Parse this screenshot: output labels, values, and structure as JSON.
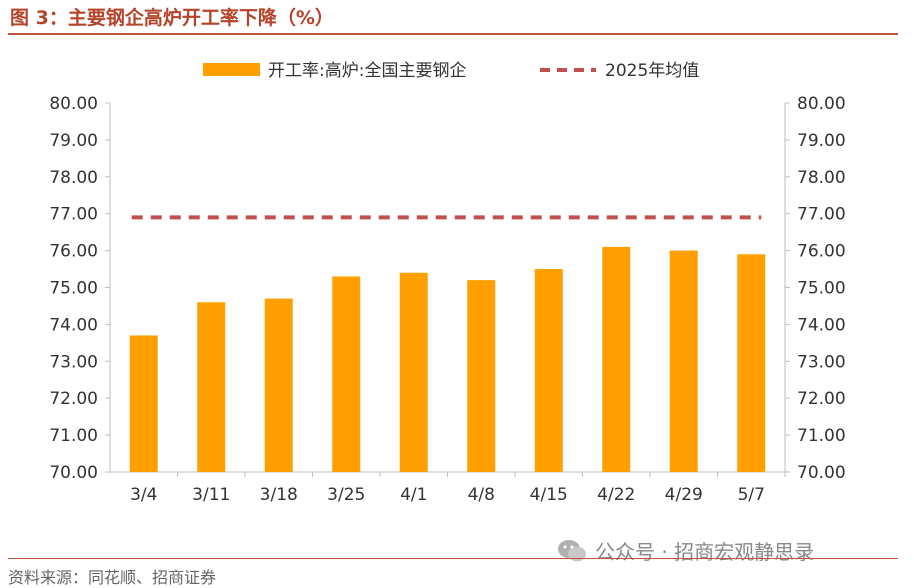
{
  "header": {
    "title": "图 3：主要钢企高炉开工率下降（%）"
  },
  "footer": {
    "source": "资料来源：同花顺、招商证券"
  },
  "watermark": {
    "text": "公众号 · 招商宏观静思录",
    "icon": "wechat-icon"
  },
  "colors": {
    "accent": "#b5432a",
    "bar": "#ffa000",
    "avg_line": "#c0504d",
    "axis": "#bfbfbf"
  },
  "chart_data": {
    "type": "bar",
    "categories": [
      "3/4",
      "3/11",
      "3/18",
      "3/25",
      "4/1",
      "4/8",
      "4/15",
      "4/22",
      "4/29",
      "5/7"
    ],
    "series": [
      {
        "name": "开工率:高炉:全国主要钢企",
        "values": [
          73.7,
          74.6,
          74.7,
          75.3,
          75.4,
          75.2,
          75.5,
          76.1,
          76.0,
          75.9
        ]
      },
      {
        "name": "2025年均值",
        "type": "line",
        "style": "dashed",
        "values": [
          76.9,
          76.9,
          76.9,
          76.9,
          76.9,
          76.9,
          76.9,
          76.9,
          76.9,
          76.9
        ]
      }
    ],
    "ylim": [
      70,
      80
    ],
    "yticks": [
      "70.00",
      "71.00",
      "72.00",
      "73.00",
      "74.00",
      "75.00",
      "76.00",
      "77.00",
      "78.00",
      "79.00",
      "80.00"
    ],
    "y2ticks": [
      "70.00",
      "71.00",
      "72.00",
      "73.00",
      "74.00",
      "75.00",
      "76.00",
      "77.00",
      "78.00",
      "79.00",
      "80.00"
    ],
    "legend_position": "top",
    "grid": false
  }
}
